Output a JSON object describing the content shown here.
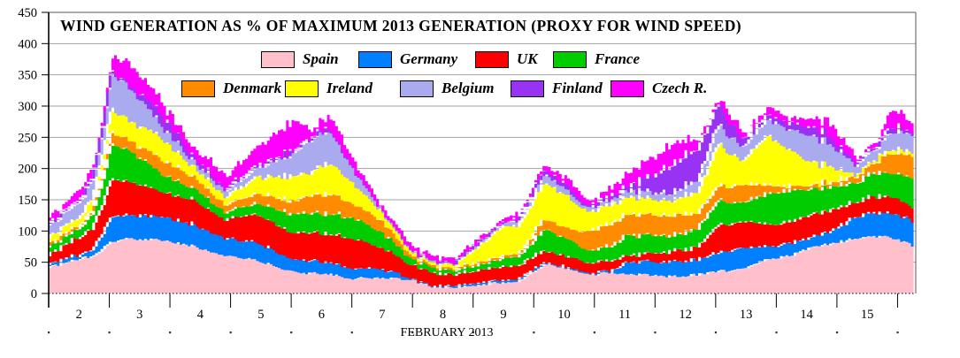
{
  "title": "WIND GENERATION AS % OF MAXIMUM 2013 GENERATION (PROXY FOR WIND SPEED)",
  "x_axis": {
    "label": "FEBRUARY 2013",
    "day_labels": [
      "2",
      "3",
      "4",
      "5",
      "6",
      "7",
      "8",
      "9",
      "10",
      "11",
      "12",
      "13",
      "14",
      "15"
    ]
  },
  "y_axis": {
    "tick_labels": [
      "0",
      "50",
      "100",
      "150",
      "200",
      "250",
      "300",
      "350",
      "400",
      "450"
    ],
    "min": 0,
    "max": 450,
    "step": 50
  },
  "legend": {
    "row1": [
      {
        "name": "Spain",
        "color": "#FFC0CB"
      },
      {
        "name": "Germany",
        "color": "#0080FF"
      },
      {
        "name": "UK",
        "color": "#FF0000"
      },
      {
        "name": "France",
        "color": "#00CC00"
      }
    ],
    "row2": [
      {
        "name": "Denmark",
        "color": "#FF8C00"
      },
      {
        "name": "Ireland",
        "color": "#FFFF00"
      },
      {
        "name": "Belgium",
        "color": "#AAAAEE"
      },
      {
        "name": "Finland",
        "color": "#9933F3"
      },
      {
        "name": "Czech R.",
        "color": "#FF00FF"
      }
    ]
  },
  "chart_data": {
    "type": "area",
    "stacked": true,
    "title": "WIND GENERATION AS % OF MAXIMUM 2013 GENERATION (PROXY FOR WIND SPEED)",
    "xlabel": "FEBRUARY 2013",
    "ylabel": "",
    "ylim": [
      0,
      450
    ],
    "x_range": [
      2.0,
      16.3
    ],
    "grid": true,
    "legend_position": "top-inside",
    "x_days": [
      2.0,
      2.25,
      2.5,
      2.75,
      3.05,
      3.34,
      3.9,
      4.4,
      4.92,
      5.43,
      6.06,
      6.3,
      6.6,
      7.04,
      7.47,
      8.0,
      8.3,
      8.7,
      9.08,
      9.45,
      9.75,
      10.2,
      10.6,
      10.93,
      11.27,
      11.56,
      12.29,
      12.73,
      13.05,
      13.46,
      13.87,
      14.23,
      14.58,
      14.92,
      15.31,
      15.65,
      15.91,
      16.3
    ],
    "series": [
      {
        "name": "Spain",
        "color": "#FFC0CB",
        "values": [
          42,
          48,
          55,
          60,
          83,
          88,
          85,
          76,
          60,
          54,
          34,
          33,
          31,
          24,
          26,
          22,
          12,
          9,
          14,
          17,
          20,
          48,
          40,
          30,
          33,
          32,
          27,
          30,
          36,
          38,
          55,
          60,
          74,
          80,
          88,
          92,
          90,
          76
        ]
      },
      {
        "name": "Germany",
        "color": "#0080FF",
        "values": [
          5,
          6,
          7,
          12,
          40,
          38,
          38,
          35,
          28,
          29,
          20,
          20,
          20,
          16,
          15,
          2,
          1,
          3,
          4,
          4,
          4,
          2,
          2,
          2,
          3,
          20,
          23,
          25,
          30,
          33,
          21,
          20,
          18,
          20,
          35,
          38,
          38,
          40
        ]
      },
      {
        "name": "UK",
        "color": "#FF0000",
        "values": [
          15,
          21,
          28,
          35,
          61,
          54,
          40,
          40,
          30,
          45,
          43,
          45,
          46,
          48,
          35,
          22,
          22,
          18,
          20,
          22,
          22,
          19,
          18,
          16,
          16,
          10,
          17,
          20,
          44,
          42,
          35,
          35,
          36,
          35,
          23,
          26,
          27,
          21
        ]
      },
      {
        "name": "France",
        "color": "#00CC00",
        "values": [
          14,
          15,
          15,
          23,
          57,
          50,
          28,
          19,
          12,
          17,
          31,
          31,
          33,
          33,
          26,
          10,
          9,
          6,
          10,
          12,
          14,
          35,
          28,
          19,
          23,
          33,
          25,
          30,
          40,
          29,
          50,
          50,
          42,
          37,
          31,
          38,
          37,
          48
        ]
      },
      {
        "name": "Denmark",
        "color": "#FF8C00",
        "values": [
          3,
          4,
          4,
          7,
          19,
          16,
          24,
          19,
          12,
          15,
          22,
          27,
          33,
          23,
          19,
          5,
          4,
          3,
          4,
          4,
          5,
          17,
          17,
          32,
          37,
          33,
          33,
          25,
          24,
          28,
          14,
          7,
          7,
          8,
          10,
          19,
          33,
          37
        ]
      },
      {
        "name": "Ireland",
        "color": "#FFFF00",
        "values": [
          11,
          12,
          14,
          18,
          35,
          32,
          33,
          16,
          12,
          26,
          40,
          36,
          50,
          33,
          14,
          5,
          4,
          6,
          26,
          45,
          45,
          59,
          50,
          31,
          30,
          28,
          23,
          35,
          68,
          38,
          80,
          58,
          38,
          25,
          2,
          2,
          7,
          5
        ]
      },
      {
        "name": "Belgium",
        "color": "#AAAAEE",
        "values": [
          19,
          21,
          24,
          30,
          59,
          54,
          19,
          10,
          9,
          14,
          38,
          53,
          54,
          23,
          3,
          2,
          3,
          2,
          4,
          5,
          7,
          14,
          10,
          6,
          8,
          10,
          11,
          20,
          31,
          23,
          26,
          32,
          43,
          35,
          17,
          17,
          28,
          28
        ]
      },
      {
        "name": "Finland",
        "color": "#9933F3",
        "values": [
          3,
          4,
          4,
          3,
          3,
          4,
          19,
          7,
          3,
          4,
          3,
          3,
          3,
          2,
          1,
          1,
          1,
          1,
          1,
          1,
          3,
          7,
          7,
          3,
          5,
          6,
          45,
          50,
          33,
          13,
          7,
          10,
          14,
          12,
          4,
          4,
          8,
          3
        ]
      },
      {
        "name": "Czech R.",
        "color": "#FF00FF",
        "values": [
          11,
          13,
          17,
          22,
          23,
          32,
          14,
          10,
          20,
          32,
          49,
          14,
          18,
          8,
          1,
          5,
          6,
          7,
          9,
          6,
          10,
          7,
          8,
          7,
          15,
          23,
          35,
          15,
          7,
          9,
          12,
          8,
          14,
          18,
          5,
          10,
          29,
          7
        ]
      }
    ]
  },
  "render_hints": {
    "sample_step_days": 0.045,
    "noise_amplitude": 2.2
  }
}
